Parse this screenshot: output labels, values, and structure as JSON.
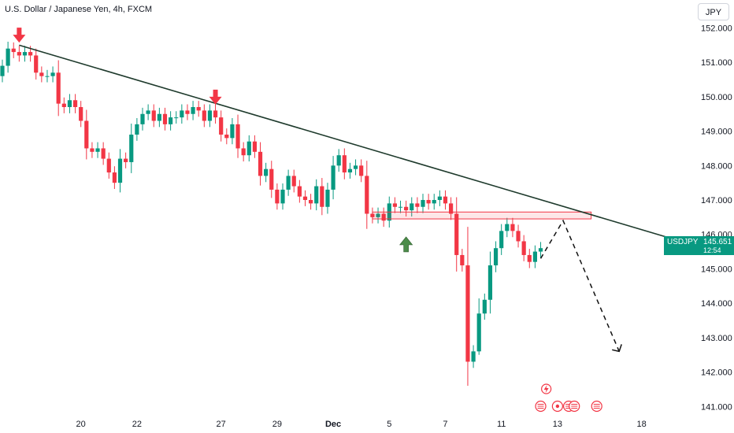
{
  "title": "U.S. Dollar / Japanese Yen, 4h, FXCM",
  "currency_button": "JPY",
  "price_tag": {
    "symbol": "USDJPY",
    "price": "145.651",
    "countdown": "12:54",
    "color": "#089981"
  },
  "colors": {
    "up": "#089981",
    "down": "#f23645",
    "trendline": "#1e3a2c",
    "zone": "#f23645",
    "arrow_down": "#f23645",
    "arrow_up": "#4c8c4a"
  },
  "chart_data": {
    "type": "candlestick",
    "title": "U.S. Dollar / Japanese Yen, 4h, FXCM",
    "ylim": [
      140.8,
      152.4
    ],
    "y_ticks": [
      141,
      142,
      143,
      144,
      145,
      146,
      147,
      148,
      149,
      150,
      151,
      152
    ],
    "y_tick_labels": [
      "141.000",
      "142.000",
      "143.000",
      "144.000",
      "145.000",
      "146.000",
      "147.000",
      "148.000",
      "149.000",
      "150.000",
      "151.000",
      "152.000"
    ],
    "x_tick_labels": [
      {
        "label": "20",
        "bar": 14
      },
      {
        "label": "22",
        "bar": 24
      },
      {
        "label": "27",
        "bar": 39
      },
      {
        "label": "29",
        "bar": 49
      },
      {
        "label": "Dec",
        "bar": 59
      },
      {
        "label": "5",
        "bar": 69
      },
      {
        "label": "7",
        "bar": 79
      },
      {
        "label": "11",
        "bar": 89
      },
      {
        "label": "13",
        "bar": 99
      },
      {
        "label": "18",
        "bar": 114
      }
    ],
    "closes": [
      150.9,
      151.4,
      151.3,
      151.2,
      151.3,
      151.2,
      150.7,
      150.6,
      150.6,
      150.7,
      149.8,
      149.7,
      149.9,
      149.7,
      149.3,
      148.5,
      148.4,
      148.5,
      148.2,
      147.8,
      147.5,
      148.2,
      148.1,
      148.9,
      149.2,
      149.5,
      149.6,
      149.3,
      149.5,
      149.2,
      149.4,
      149.4,
      149.6,
      149.5,
      149.7,
      149.6,
      149.3,
      149.6,
      149.4,
      148.9,
      148.8,
      149.2,
      148.5,
      148.3,
      148.7,
      148.4,
      147.7,
      147.9,
      147.3,
      146.9,
      147.3,
      147.7,
      147.4,
      147.1,
      147.0,
      146.9,
      147.4,
      146.8,
      147.3,
      148.0,
      148.3,
      147.8,
      147.9,
      148.0,
      147.7,
      146.6,
      146.5,
      146.6,
      146.4,
      146.9,
      146.8,
      146.8,
      146.7,
      146.9,
      146.8,
      147.0,
      146.9,
      147.0,
      147.1,
      146.9,
      146.6,
      145.4,
      145.1,
      142.3,
      142.6,
      143.7,
      144.1,
      145.1,
      145.6,
      146.1,
      146.3,
      146.1,
      145.8,
      145.4,
      145.2,
      145.5,
      145.6
    ],
    "trendline": {
      "from": {
        "bar": 3,
        "price": 151.5
      },
      "to": {
        "bar": 121,
        "price": 145.8
      }
    },
    "resistance_zone": {
      "from_bar": 66,
      "to_bar": 105,
      "low": 146.45,
      "high": 146.65
    },
    "projection": [
      {
        "bar": 96,
        "price": 145.3
      },
      {
        "bar": 100,
        "price": 146.4
      },
      {
        "bar": 110,
        "price": 142.6
      }
    ],
    "markers": [
      {
        "type": "arrow-down",
        "bar": 3,
        "price": 151.55
      },
      {
        "type": "arrow-down",
        "bar": 38,
        "price": 149.75
      },
      {
        "type": "arrow-up",
        "bar": 72,
        "price": 145.95
      }
    ],
    "event_icons": [
      {
        "type": "flash",
        "bar": 97
      },
      {
        "type": "flag",
        "bar": 96
      },
      {
        "type": "dot",
        "bar": 99
      },
      {
        "type": "flag",
        "bar": 101
      },
      {
        "type": "flag",
        "bar": 102
      },
      {
        "type": "flag",
        "bar": 106
      }
    ]
  }
}
